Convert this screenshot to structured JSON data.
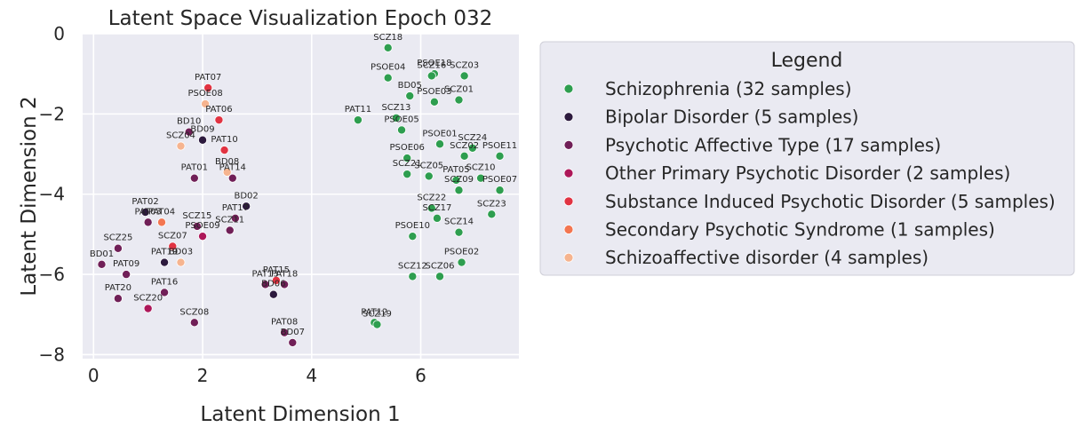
{
  "chart_data": {
    "type": "scatter",
    "title": "Latent Space Visualization Epoch 032",
    "xlabel": "Latent Dimension 1",
    "ylabel": "Latent Dimension 2",
    "xlim": [
      -0.2,
      7.8
    ],
    "ylim": [
      -8.1,
      0.0
    ],
    "xticks": [
      0,
      2,
      4,
      6
    ],
    "yticks": [
      0,
      -2,
      -4,
      -6,
      -8
    ],
    "grid": true,
    "legend": {
      "title": "Legend",
      "placement": "outside-right"
    },
    "series": [
      {
        "name": "Schizophrenia (32 samples)",
        "color": "#2e9e4f",
        "points": [
          {
            "label": "SCZ18",
            "x": 5.4,
            "y": -0.35
          },
          {
            "label": "PSOE18",
            "x": 6.25,
            "y": -1.0
          },
          {
            "label": "SCZ16",
            "x": 6.2,
            "y": -1.05
          },
          {
            "label": "SCZ03",
            "x": 6.8,
            "y": -1.05
          },
          {
            "label": "PSOE04",
            "x": 5.4,
            "y": -1.1
          },
          {
            "label": "BD05",
            "x": 5.8,
            "y": -1.55
          },
          {
            "label": "PSOE03",
            "x": 6.25,
            "y": -1.7
          },
          {
            "label": "SCZ01",
            "x": 6.7,
            "y": -1.65
          },
          {
            "label": "PAT11",
            "x": 4.85,
            "y": -2.15
          },
          {
            "label": "SCZ13",
            "x": 5.55,
            "y": -2.1
          },
          {
            "label": "PSOE05",
            "x": 5.65,
            "y": -2.4
          },
          {
            "label": "PSOE01",
            "x": 6.35,
            "y": -2.75
          },
          {
            "label": "SCZ24",
            "x": 6.95,
            "y": -2.85
          },
          {
            "label": "SCZ02",
            "x": 6.8,
            "y": -3.05
          },
          {
            "label": "PSOE11",
            "x": 7.45,
            "y": -3.05
          },
          {
            "label": "PSOE06",
            "x": 5.75,
            "y": -3.1
          },
          {
            "label": "SCZ21",
            "x": 5.75,
            "y": -3.5
          },
          {
            "label": "SCZ05",
            "x": 6.15,
            "y": -3.55
          },
          {
            "label": "PAT05",
            "x": 6.65,
            "y": -3.65
          },
          {
            "label": "SCZ10",
            "x": 7.1,
            "y": -3.6
          },
          {
            "label": "SCZ09",
            "x": 6.7,
            "y": -3.9
          },
          {
            "label": "PSOE07",
            "x": 7.45,
            "y": -3.9
          },
          {
            "label": "SCZ22",
            "x": 6.2,
            "y": -4.35
          },
          {
            "label": "SCZ23",
            "x": 7.3,
            "y": -4.5
          },
          {
            "label": "SCZ17",
            "x": 6.3,
            "y": -4.6
          },
          {
            "label": "SCZ14",
            "x": 6.7,
            "y": -4.95
          },
          {
            "label": "PSOE10",
            "x": 5.85,
            "y": -5.05
          },
          {
            "label": "PSOE02",
            "x": 6.75,
            "y": -5.7
          },
          {
            "label": "SCZ12",
            "x": 5.85,
            "y": -6.05
          },
          {
            "label": "SCZ06",
            "x": 6.35,
            "y": -6.05
          },
          {
            "label": "PAT12",
            "x": 5.15,
            "y": -7.2
          },
          {
            "label": "SCZ19",
            "x": 5.2,
            "y": -7.25
          }
        ]
      },
      {
        "name": "Bipolar Disorder (5 samples)",
        "color": "#2d1a3e",
        "points": [
          {
            "label": "BD09",
            "x": 2.0,
            "y": -2.65
          },
          {
            "label": "BD02",
            "x": 2.8,
            "y": -4.3
          },
          {
            "label": "PAT02",
            "x": 0.95,
            "y": -4.45
          },
          {
            "label": "PAT19",
            "x": 1.3,
            "y": -5.7
          },
          {
            "label": "BD06",
            "x": 3.3,
            "y": -6.5
          }
        ]
      },
      {
        "name": "Psychotic Affective Type (17 samples)",
        "color": "#701f57",
        "points": [
          {
            "label": "BD10",
            "x": 1.75,
            "y": -2.45
          },
          {
            "label": "PAT01",
            "x": 1.85,
            "y": -3.6
          },
          {
            "label": "PAT14",
            "x": 2.55,
            "y": -3.6
          },
          {
            "label": "PAT17",
            "x": 2.6,
            "y": -4.6
          },
          {
            "label": "PAT03",
            "x": 1.0,
            "y": -4.7
          },
          {
            "label": "SCZ15",
            "x": 1.9,
            "y": -4.8
          },
          {
            "label": "SCZ11",
            "x": 2.5,
            "y": -4.9
          },
          {
            "label": "SCZ25",
            "x": 0.45,
            "y": -5.35
          },
          {
            "label": "BD01",
            "x": 0.15,
            "y": -5.75
          },
          {
            "label": "PAT09",
            "x": 0.6,
            "y": -6.0
          },
          {
            "label": "PAT13",
            "x": 3.15,
            "y": -6.25
          },
          {
            "label": "PAT18",
            "x": 3.5,
            "y": -6.25
          },
          {
            "label": "PAT16",
            "x": 1.3,
            "y": -6.45
          },
          {
            "label": "PAT20",
            "x": 0.45,
            "y": -6.6
          },
          {
            "label": "SCZ08",
            "x": 1.85,
            "y": -7.2
          },
          {
            "label": "PAT08",
            "x": 3.5,
            "y": -7.45
          },
          {
            "label": "BD07",
            "x": 3.65,
            "y": -7.7
          }
        ]
      },
      {
        "name": "Other Primary Psychotic Disorder (2 samples)",
        "color": "#ad1759",
        "points": [
          {
            "label": "PSOE09",
            "x": 2.0,
            "y": -5.05
          },
          {
            "label": "SCZ20",
            "x": 1.0,
            "y": -6.85
          }
        ]
      },
      {
        "name": "Substance Induced Psychotic Disorder (5 samples)",
        "color": "#e13342",
        "points": [
          {
            "label": "PAT07",
            "x": 2.1,
            "y": -1.35
          },
          {
            "label": "PAT06",
            "x": 2.3,
            "y": -2.15
          },
          {
            "label": "PAT10",
            "x": 2.4,
            "y": -2.9
          },
          {
            "label": "SCZ07",
            "x": 1.45,
            "y": -5.3
          },
          {
            "label": "PAT15",
            "x": 3.35,
            "y": -6.15
          }
        ]
      },
      {
        "name": "Secondary Psychotic Syndrome (1 samples)",
        "color": "#f37651",
        "points": [
          {
            "label": "PAT04",
            "x": 1.25,
            "y": -4.7
          }
        ]
      },
      {
        "name": "Schizoaffective disorder (4 samples)",
        "color": "#f6b48f",
        "points": [
          {
            "label": "PSOE08",
            "x": 2.05,
            "y": -1.75
          },
          {
            "label": "SCZ04",
            "x": 1.6,
            "y": -2.8
          },
          {
            "label": "BD08",
            "x": 2.45,
            "y": -3.45
          },
          {
            "label": "BD03",
            "x": 1.6,
            "y": -5.7
          }
        ]
      }
    ]
  }
}
